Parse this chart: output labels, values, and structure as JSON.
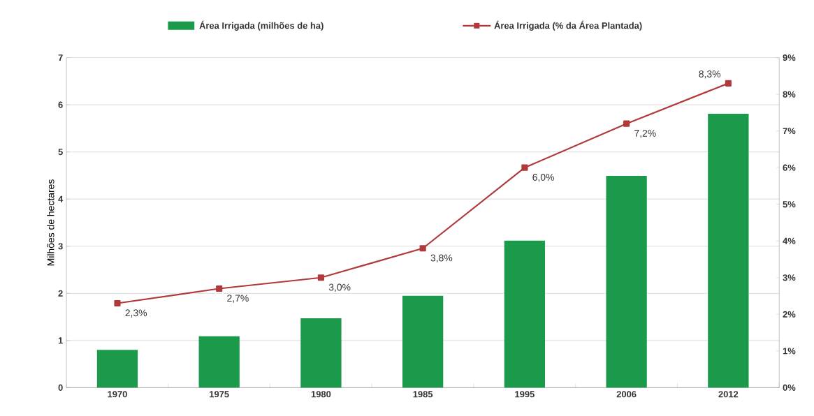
{
  "chart_data": {
    "type": "bar",
    "categories": [
      "1970",
      "1975",
      "1980",
      "1985",
      "1995",
      "2006",
      "2012"
    ],
    "ylabel": "Milhões de hectares",
    "ylim": [
      0,
      7
    ],
    "yticks": [
      0,
      1,
      2,
      3,
      4,
      5,
      6,
      7
    ],
    "y2lim": [
      0,
      9
    ],
    "y2ticks": [
      {
        "value": 0,
        "label": "0%"
      },
      {
        "value": 1,
        "label": "1%"
      },
      {
        "value": 2,
        "label": "2%"
      },
      {
        "value": 3,
        "label": "3%"
      },
      {
        "value": 4,
        "label": "4%"
      },
      {
        "value": 5,
        "label": "5%"
      },
      {
        "value": 6,
        "label": "6%"
      },
      {
        "value": 7,
        "label": "7%"
      },
      {
        "value": 8,
        "label": "8%"
      },
      {
        "value": 9,
        "label": "9%"
      }
    ],
    "grid": "y",
    "legend": "top",
    "series": [
      {
        "name": "Área Irrigada (milhões de ha)",
        "color": "#1a9a4a",
        "values": [
          0.8,
          1.09,
          1.47,
          1.95,
          3.12,
          4.49,
          5.81
        ]
      },
      {
        "name": "Área Irrigada (% da Área Plantada)",
        "type": "line",
        "axis": "y2",
        "color": "#b0393c",
        "marker": "square",
        "line_style": "solid",
        "values": [
          2.3,
          2.7,
          3.0,
          3.8,
          6.0,
          7.2,
          8.3
        ],
        "value_labels": [
          "2,3%",
          "2,7%",
          "3,0%",
          "3,8%",
          "6,0%",
          "7,2%",
          "8,3%"
        ]
      }
    ]
  }
}
